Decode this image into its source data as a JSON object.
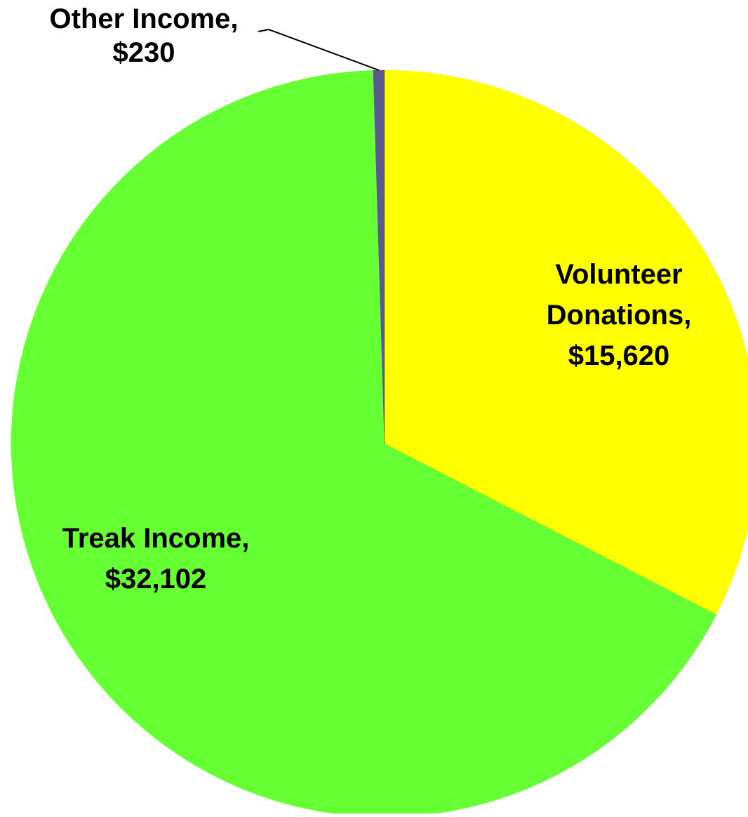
{
  "chart_data": {
    "type": "pie",
    "title": "",
    "slices": [
      {
        "label": "Volunteer Donations",
        "value": 15620,
        "value_text": "$15,620",
        "label_lines": [
          "Volunteer",
          "Donations,",
          "$15,620"
        ],
        "color": "#FFFF00"
      },
      {
        "label": "Treak Income",
        "value": 32102,
        "value_text": "$32,102",
        "label_lines": [
          "Treak Income,",
          "$32,102"
        ],
        "color": "#66FF33"
      },
      {
        "label": "Other Income",
        "value": 230,
        "value_text": "$230",
        "label_lines": [
          "Other Income,",
          "$230"
        ],
        "color": "#5A5A8C"
      }
    ],
    "start_angle": "12 o'clock",
    "direction": "clockwise",
    "legend": "none",
    "label_position": "on slices, leader line for small slice"
  }
}
